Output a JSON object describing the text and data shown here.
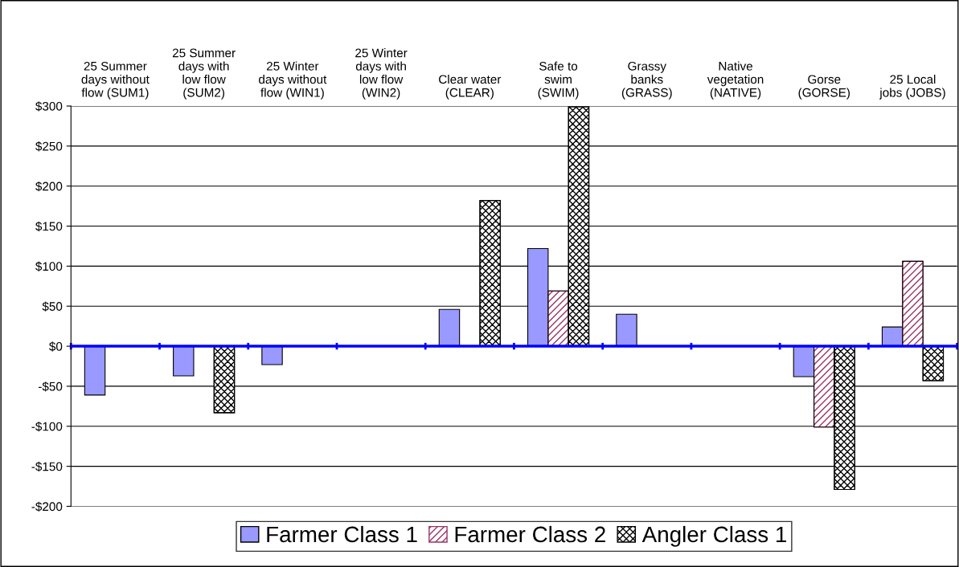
{
  "chart_data": {
    "type": "bar",
    "categories": [
      "25 Summer\ndays without\nflow (SUM1)",
      "25 Summer\ndays with\nlow flow\n(SUM2)",
      "25 Winter\ndays without\nflow (WIN1)",
      "25 Winter\ndays with\nlow flow\n(WIN2)",
      "Clear water\n(CLEAR)",
      "Safe to\nswim\n(SWIM)",
      "Grassy\nbanks\n(GRASS)",
      "Native\nvegetation\n(NATIVE)",
      "Gorse\n(GORSE)",
      "25 Local\njobs (JOBS)"
    ],
    "series": [
      {
        "name": "Farmer Class 1",
        "color": "#9999ff",
        "values": [
          -61,
          -37,
          -23,
          null,
          46,
          122,
          40,
          null,
          -38,
          24
        ]
      },
      {
        "name": "Farmer Class 2",
        "color": "#993366",
        "values": [
          null,
          null,
          null,
          null,
          null,
          69,
          null,
          null,
          -101,
          106
        ]
      },
      {
        "name": "Angler Class 1",
        "color": "#000000",
        "values": [
          null,
          -83,
          null,
          null,
          182,
          299,
          null,
          null,
          -179,
          -43
        ]
      }
    ],
    "ylim": [
      -200,
      300
    ],
    "yticks": [
      {
        "value": -200,
        "label": "-$200"
      },
      {
        "value": -150,
        "label": "-$150"
      },
      {
        "value": -100,
        "label": "-$100"
      },
      {
        "value": -50,
        "label": "-$50"
      },
      {
        "value": 0,
        "label": "$0"
      },
      {
        "value": 50,
        "label": "$50"
      },
      {
        "value": 100,
        "label": "$100"
      },
      {
        "value": 150,
        "label": "$150"
      },
      {
        "value": 200,
        "label": "$200"
      },
      {
        "value": 250,
        "label": "$250"
      },
      {
        "value": 300,
        "label": "$300"
      }
    ],
    "ref_lines": [
      {
        "axis": "y",
        "value": 0,
        "color": "#0000ff"
      }
    ],
    "grid": "y",
    "legend": "bottom"
  }
}
